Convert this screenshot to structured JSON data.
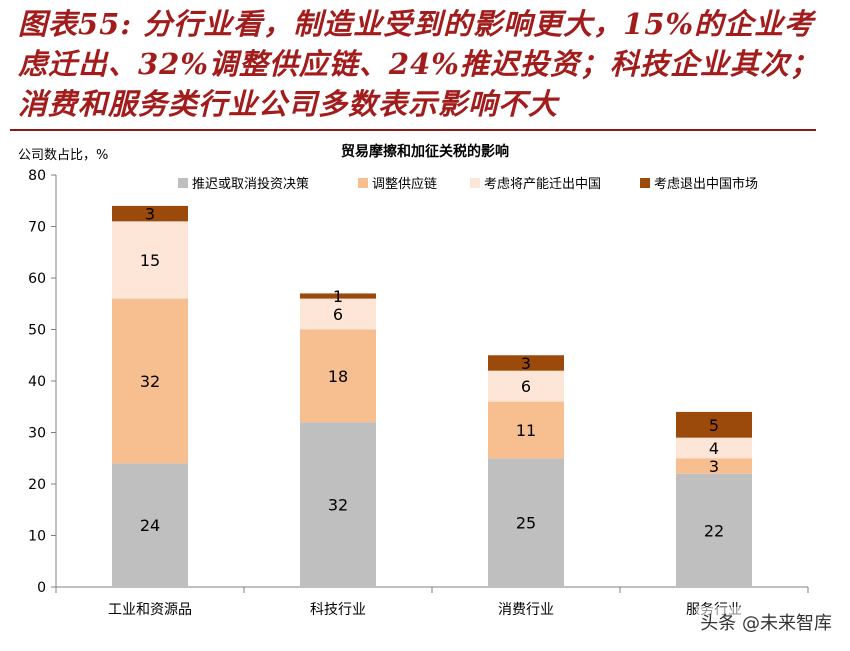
{
  "heading": {
    "text": "图表55: 分行业看，制造业受到的影响更大，15%的企业考虑迁出、32%调整供应链、24%推迟投资；科技企业其次；消费和服务类行业公司多数表示影响不大"
  },
  "watermark": "头条 @未来智库",
  "colors": {
    "heading": "#a21c1c",
    "delay_investment": "#bfbfbf",
    "adjust_supply_chain": "#f7be8f",
    "consider_relocating": "#fde6d8",
    "consider_exit": "#9c4a0c"
  },
  "chart_data": {
    "type": "bar",
    "stacked": true,
    "title": "贸易摩擦和加征关税的影响",
    "ylabel": "公司数占比，%",
    "ylim": [
      0,
      80
    ],
    "yticks": [
      0,
      10,
      20,
      30,
      40,
      50,
      60,
      70,
      80
    ],
    "categories": [
      "工业和资源品",
      "科技行业",
      "消费行业",
      "服务行业"
    ],
    "legend_position": "top",
    "grid": false,
    "series": [
      {
        "name": "推迟或取消投资决策",
        "color": "#bfbfbf",
        "values": [
          24,
          32,
          25,
          22
        ]
      },
      {
        "name": "调整供应链",
        "color": "#f7be8f",
        "values": [
          32,
          18,
          11,
          3
        ]
      },
      {
        "name": "考虑将产能迁出中国",
        "color": "#fde6d8",
        "values": [
          15,
          6,
          6,
          4
        ]
      },
      {
        "name": "考虑退出中国市场",
        "color": "#9c4a0c",
        "values": [
          3,
          1,
          3,
          5
        ]
      }
    ]
  }
}
